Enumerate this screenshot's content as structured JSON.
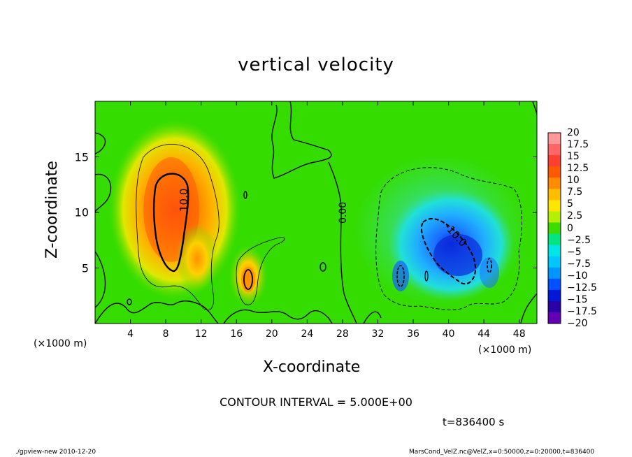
{
  "chart_data": {
    "type": "heatmap",
    "title": "vertical velocity",
    "xlabel": "X-coordinate",
    "ylabel": "Z-coordinate",
    "x_unit": "(×1000 m)",
    "z_unit": "(×1000 m)",
    "xlim": [
      0,
      50
    ],
    "ylim": [
      0,
      20
    ],
    "x_ticks": [
      "4",
      "8",
      "12",
      "16",
      "20",
      "24",
      "28",
      "32",
      "36",
      "40",
      "44",
      "48"
    ],
    "y_ticks": [
      "5",
      "10",
      "15"
    ],
    "colorbar": {
      "labels": [
        "20",
        "17.5",
        "15",
        "12.5",
        "10",
        "7.5",
        "5",
        "2.5",
        "0",
        "−2.5",
        "−5",
        "−7.5",
        "−10",
        "−12.5",
        "−15",
        "−17.5",
        "−20"
      ],
      "colors": [
        "#ff9999",
        "#ff6666",
        "#ff4030",
        "#ff5a00",
        "#ff8c00",
        "#ffbf00",
        "#ffe600",
        "#b4f000",
        "#3cdc00",
        "#00e680",
        "#00e6e6",
        "#00c8ff",
        "#0096ff",
        "#0050ff",
        "#0018d8",
        "#2a00a8",
        "#6400b4"
      ]
    },
    "contour_interval_text": "CONTOUR INTERVAL = 5.000E+00",
    "contour_labels": [
      "10.0",
      "0.00",
      "-10.0"
    ],
    "features": [
      {
        "name": "updraft",
        "x_center": 8.5,
        "z_center": 10,
        "peak": 13
      },
      {
        "name": "downdraft",
        "x_center": 40,
        "z_center": 7,
        "peak": -15
      }
    ]
  },
  "time_label": "t=836400 s",
  "footer_left": "./gpview-new   2010-12-20",
  "footer_right": "MarsCond_VelZ.nc@VelZ,x=0:50000,z=0:20000,t=836400"
}
